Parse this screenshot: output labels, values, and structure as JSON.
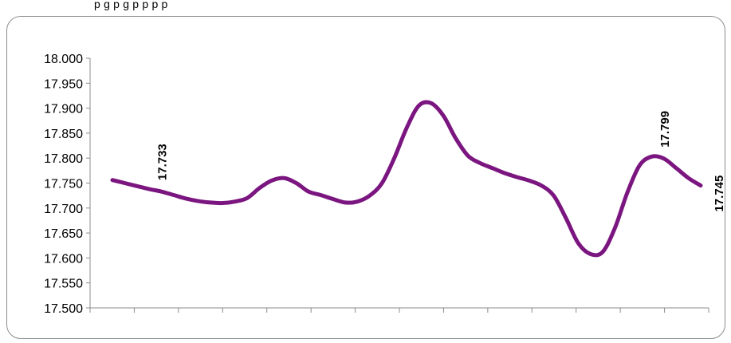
{
  "chart_data": {
    "type": "line",
    "title": "",
    "xlabel": "",
    "ylabel": "",
    "ylim": [
      17.5,
      18.0
    ],
    "yticks": [
      "18.000",
      "17.950",
      "17.900",
      "17.850",
      "17.800",
      "17.750",
      "17.700",
      "17.650",
      "17.600",
      "17.550",
      "17.500"
    ],
    "grid": false,
    "series": [
      {
        "color": "#7b1580",
        "values": [
          17.756,
          17.75,
          17.744,
          17.738,
          17.733,
          17.726,
          17.719,
          17.714,
          17.711,
          17.71,
          17.713,
          17.72,
          17.74,
          17.755,
          17.76,
          17.75,
          17.733,
          17.726,
          17.718,
          17.711,
          17.713,
          17.725,
          17.75,
          17.8,
          17.86,
          17.905,
          17.91,
          17.885,
          17.84,
          17.805,
          17.79,
          17.78,
          17.77,
          17.762,
          17.755,
          17.745,
          17.725,
          17.68,
          17.63,
          17.608,
          17.612,
          17.66,
          17.73,
          17.785,
          17.803,
          17.799,
          17.78,
          17.76,
          17.745
        ]
      }
    ],
    "data_labels": [
      {
        "index": 4,
        "text": "17.733"
      },
      {
        "index": 45,
        "text": "17.799"
      },
      {
        "index": 48,
        "text": "17.745"
      }
    ],
    "x_tick_count": 14
  },
  "caption": "p                                                 g                    p                                                 g    p p p p"
}
